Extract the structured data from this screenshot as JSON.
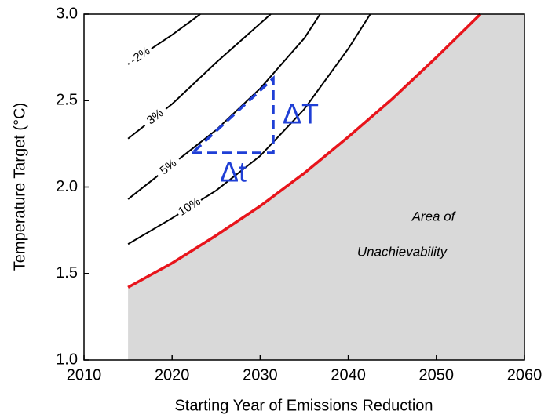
{
  "chart_data": {
    "type": "line",
    "x_label": "Starting Year of Emissions Reduction",
    "y_label": "Temperature Target (°C)",
    "xlim": [
      2010,
      2060
    ],
    "ylim": [
      1.0,
      3.0
    ],
    "xticks": [
      2010,
      2020,
      2030,
      2040,
      2050,
      2060
    ],
    "yticks": [
      {
        "value": 1.0,
        "label": "1.0"
      },
      1.5,
      {
        "value": 2.0,
        "label": "2.0"
      },
      2.5,
      {
        "value": 3.0,
        "label": "3.0"
      }
    ],
    "series": [
      {
        "name": "-2%",
        "color": "#000000",
        "x": [
          2015,
          2020,
          2023.2
        ],
        "values": [
          2.71,
          2.88,
          3.0
        ]
      },
      {
        "name": "3%",
        "color": "#000000",
        "x": [
          2015,
          2020,
          2025,
          2031.2
        ],
        "values": [
          2.28,
          2.48,
          2.72,
          3.0
        ]
      },
      {
        "name": "5%",
        "color": "#000000",
        "x": [
          2015,
          2020,
          2025,
          2030,
          2035,
          2036.8
        ],
        "values": [
          1.93,
          2.13,
          2.33,
          2.57,
          2.86,
          3.0
        ]
      },
      {
        "name": "10%",
        "color": "#000000",
        "x": [
          2015,
          2020,
          2025,
          2030,
          2035,
          2040,
          2042.5
        ],
        "values": [
          1.67,
          1.82,
          1.98,
          2.18,
          2.45,
          2.8,
          3.0
        ]
      },
      {
        "x": [
          2015,
          2020,
          2025,
          2030,
          2035,
          2040,
          2045,
          2050,
          2055
        ],
        "values": [
          1.42,
          1.56,
          1.72,
          1.89,
          2.08,
          2.29,
          2.51,
          2.75,
          3.0
        ],
        "color": "#e8141b"
      }
    ],
    "shade_color": "#d9d9d9",
    "annotations": [
      "Area of",
      "Unachievability",
      "ΔT",
      "Δt"
    ]
  }
}
